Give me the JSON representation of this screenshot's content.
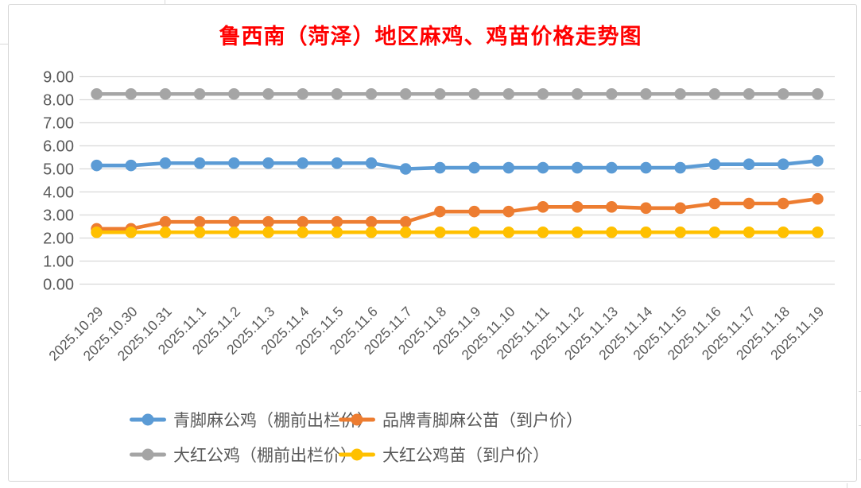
{
  "chart_data": {
    "type": "line",
    "title": "鲁西南（菏泽）地区麻鸡、鸡苗价格走势图",
    "categories": [
      "2025.10.29",
      "2025.10.30",
      "2025.10.31",
      "2025.11.1",
      "2025.11.2",
      "2025.11.3",
      "2025.11.4",
      "2025.11.5",
      "2025.11.6",
      "2025.11.7",
      "2025.11.8",
      "2025.11.9",
      "2025.11.10",
      "2025.11.11",
      "2025.11.12",
      "2025.11.13",
      "2025.11.14",
      "2025.11.15",
      "2025.11.16",
      "2025.11.17",
      "2025.11.18",
      "2025.11.19"
    ],
    "series": [
      {
        "name": "青脚麻公鸡（棚前出栏价）",
        "color": "#5B9BD5",
        "values": [
          5.15,
          5.15,
          5.25,
          5.25,
          5.25,
          5.25,
          5.25,
          5.25,
          5.25,
          5.0,
          5.05,
          5.05,
          5.05,
          5.05,
          5.05,
          5.05,
          5.05,
          5.05,
          5.2,
          5.2,
          5.2,
          5.35
        ]
      },
      {
        "name": "品牌青脚麻公苗（到户价）",
        "color": "#ED7D31",
        "values": [
          2.4,
          2.4,
          2.7,
          2.7,
          2.7,
          2.7,
          2.7,
          2.7,
          2.7,
          2.7,
          3.15,
          3.15,
          3.15,
          3.35,
          3.35,
          3.35,
          3.3,
          3.3,
          3.5,
          3.5,
          3.5,
          3.7
        ]
      },
      {
        "name": "大红公鸡（棚前出栏价）",
        "color": "#A5A5A5",
        "values": [
          8.25,
          8.25,
          8.25,
          8.25,
          8.25,
          8.25,
          8.25,
          8.25,
          8.25,
          8.25,
          8.25,
          8.25,
          8.25,
          8.25,
          8.25,
          8.25,
          8.25,
          8.25,
          8.25,
          8.25,
          8.25,
          8.25
        ]
      },
      {
        "name": "大红公鸡苗（到户价）",
        "color": "#FFC000",
        "values": [
          2.25,
          2.25,
          2.25,
          2.25,
          2.25,
          2.25,
          2.25,
          2.25,
          2.25,
          2.25,
          2.25,
          2.25,
          2.25,
          2.25,
          2.25,
          2.25,
          2.25,
          2.25,
          2.25,
          2.25,
          2.25,
          2.25
        ]
      }
    ],
    "ylim": [
      0,
      9
    ],
    "yticks": [
      "9.00",
      "8.00",
      "7.00",
      "6.00",
      "5.00",
      "4.00",
      "3.00",
      "2.00",
      "1.00",
      "0.00"
    ],
    "grid": true,
    "x_label_rotation": -45,
    "legend_position": "bottom"
  },
  "colors": {
    "title": "#FF0000",
    "axis_label": "#595959",
    "gridline": "#D9D9D9",
    "chart_border": "#D6D6D6"
  }
}
